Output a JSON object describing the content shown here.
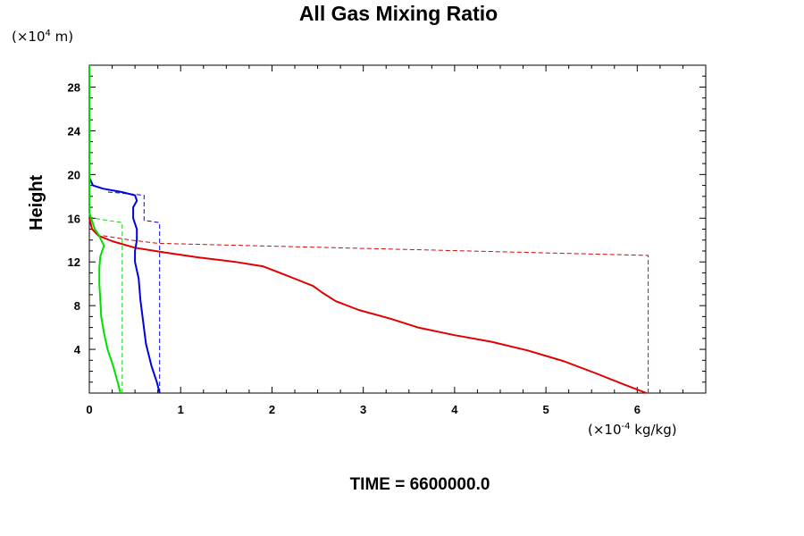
{
  "chart_data": {
    "type": "line",
    "title": "All Gas Mixing Ratio",
    "ylabel": "Height",
    "y_unit": {
      "prefix": "(×10",
      "exp": "4",
      "suffix": " m)"
    },
    "x_unit": {
      "prefix": "(×10",
      "exp": "-4",
      "suffix": " kg/kg)"
    },
    "annotation": "TIME = 6600000.0",
    "xlim": [
      0,
      6.75
    ],
    "ylim": [
      0,
      30
    ],
    "x_ticks": [
      0,
      1,
      2,
      3,
      4,
      5,
      6
    ],
    "x_tick_labels": [
      "0",
      "1",
      "2",
      "3",
      "4",
      "5",
      "6"
    ],
    "y_ticks": [
      4,
      8,
      12,
      16,
      20,
      24,
      28
    ],
    "y_tick_labels": [
      "4",
      "8",
      "12",
      "16",
      "20",
      "24",
      "28"
    ],
    "grid": false,
    "series": [
      {
        "color": "#e00000",
        "dash": false,
        "points": [
          [
            6.1,
            0
          ],
          [
            5.85,
            0.8
          ],
          [
            5.55,
            1.8
          ],
          [
            5.2,
            2.9
          ],
          [
            4.8,
            3.9
          ],
          [
            4.4,
            4.7
          ],
          [
            4.0,
            5.3
          ],
          [
            3.6,
            6.0
          ],
          [
            3.3,
            6.8
          ],
          [
            2.95,
            7.6
          ],
          [
            2.7,
            8.4
          ],
          [
            2.55,
            9.2
          ],
          [
            2.45,
            9.8
          ],
          [
            2.3,
            10.3
          ],
          [
            2.15,
            10.8
          ],
          [
            1.9,
            11.6
          ],
          [
            1.6,
            12.0
          ],
          [
            1.2,
            12.4
          ],
          [
            0.8,
            12.9
          ],
          [
            0.5,
            13.3
          ],
          [
            0.25,
            13.9
          ],
          [
            0.1,
            14.4
          ],
          [
            0.03,
            15.0
          ],
          [
            0,
            16.0
          ]
        ]
      },
      {
        "color": "#e00000",
        "dash": true,
        "points": [
          [
            6.12,
            0
          ],
          [
            6.12,
            12.6
          ],
          [
            0.75,
            13.7
          ],
          [
            0.45,
            14.0
          ],
          [
            0.3,
            14.2
          ],
          [
            0.15,
            14.4
          ]
        ]
      },
      {
        "color": "#0000e0",
        "dash": false,
        "points": [
          [
            0.77,
            0
          ],
          [
            0.74,
            1.0
          ],
          [
            0.68,
            2.5
          ],
          [
            0.62,
            4.5
          ],
          [
            0.59,
            6.5
          ],
          [
            0.56,
            8.5
          ],
          [
            0.54,
            10.5
          ],
          [
            0.5,
            12.0
          ],
          [
            0.5,
            13.0
          ],
          [
            0.52,
            14.0
          ],
          [
            0.52,
            15.0
          ],
          [
            0.48,
            16.0
          ],
          [
            0.48,
            17.0
          ],
          [
            0.52,
            17.6
          ],
          [
            0.5,
            18.1
          ],
          [
            0.35,
            18.4
          ],
          [
            0.15,
            18.7
          ],
          [
            0.04,
            19.0
          ],
          [
            0,
            19.7
          ]
        ]
      },
      {
        "color": "#0000e0",
        "dash": true,
        "points": [
          [
            0.77,
            0
          ],
          [
            0.77,
            15.6
          ],
          [
            0.6,
            15.8
          ],
          [
            0.6,
            18.1
          ],
          [
            0.35,
            18.3
          ],
          [
            0.2,
            18.4
          ]
        ]
      },
      {
        "color": "#00dd00",
        "dash": false,
        "points": [
          [
            0.34,
            0
          ],
          [
            0.31,
            1.0
          ],
          [
            0.26,
            2.5
          ],
          [
            0.2,
            4.0
          ],
          [
            0.16,
            5.5
          ],
          [
            0.13,
            7.0
          ],
          [
            0.12,
            8.5
          ],
          [
            0.11,
            10.0
          ],
          [
            0.11,
            11.5
          ],
          [
            0.12,
            12.5
          ],
          [
            0.16,
            13.5
          ],
          [
            0.1,
            14.5
          ],
          [
            0.06,
            15.0
          ],
          [
            0.02,
            16.0
          ],
          [
            0,
            16.5
          ],
          [
            0,
            30
          ]
        ]
      },
      {
        "color": "#00dd00",
        "dash": true,
        "points": [
          [
            0.36,
            0
          ],
          [
            0.36,
            15.6
          ],
          [
            0.2,
            15.8
          ],
          [
            0.05,
            16.0
          ],
          [
            0,
            16.2
          ]
        ]
      }
    ]
  }
}
